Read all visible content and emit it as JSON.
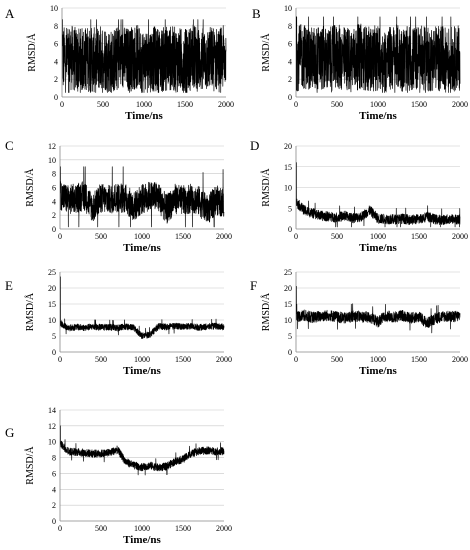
{
  "chart_data": [
    {
      "panel": "A",
      "type": "line",
      "xlabel": "Time/ns",
      "ylabel": "RMSD/Å",
      "xlim": [
        0,
        2000
      ],
      "ylim": [
        0,
        10
      ],
      "xticks": [
        "0",
        "500",
        "1000",
        "1500",
        "2000"
      ],
      "yticks": [
        "0",
        "2",
        "4",
        "6",
        "8",
        "10"
      ],
      "x": [
        0,
        100,
        200,
        300,
        400,
        500,
        600,
        700,
        800,
        900,
        1000,
        1100,
        1200,
        1300,
        1400,
        1500,
        1600,
        1700,
        1800,
        1900,
        2000
      ],
      "series": [
        {
          "values": [
            4.2,
            4.5,
            4.0,
            4.3,
            4.1,
            4.6,
            3.9,
            4.4,
            4.2,
            4.5,
            4.0,
            4.3,
            4.1,
            4.4,
            4.2,
            4.0,
            4.5,
            4.1,
            4.3,
            4.2,
            4.4
          ]
        }
      ],
      "range_min": 0.5,
      "range_max": 8.7
    },
    {
      "panel": "B",
      "type": "line",
      "xlabel": "Time/ns",
      "ylabel": "RMSD/Å",
      "xlim": [
        0,
        2000
      ],
      "ylim": [
        0,
        10
      ],
      "xticks": [
        "0",
        "500",
        "1000",
        "1500",
        "2000"
      ],
      "yticks": [
        "0",
        "2",
        "4",
        "6",
        "8",
        "10"
      ],
      "x": [
        0,
        100,
        200,
        300,
        400,
        500,
        600,
        700,
        800,
        900,
        1000,
        1100,
        1200,
        1300,
        1400,
        1500,
        1600,
        1700,
        1800,
        1900,
        2000
      ],
      "series": [
        {
          "values": [
            4.3,
            4.6,
            4.2,
            4.4,
            4.1,
            4.5,
            4.2,
            4.3,
            4.6,
            4.2,
            4.4,
            4.1,
            4.5,
            4.3,
            4.2,
            4.4,
            4.1,
            4.5,
            4.2,
            4.3,
            4.4
          ]
        }
      ],
      "range_min": 0.5,
      "range_max": 9.0
    },
    {
      "panel": "C",
      "type": "line",
      "xlabel": "Time/ns",
      "ylabel": "RMSD/Å",
      "xlim": [
        0,
        2000
      ],
      "ylim": [
        0,
        12
      ],
      "xticks": [
        "0",
        "500",
        "1000",
        "1500",
        "2000"
      ],
      "yticks": [
        "0",
        "2",
        "4",
        "6",
        "8",
        "10",
        "12"
      ],
      "x": [
        0,
        100,
        200,
        300,
        400,
        500,
        600,
        700,
        800,
        900,
        1000,
        1100,
        1200,
        1300,
        1400,
        1500,
        1600,
        1700,
        1800,
        1900,
        2000
      ],
      "series": [
        {
          "values": [
            5.0,
            4.2,
            4.5,
            4.8,
            3.0,
            4.5,
            4.2,
            4.6,
            4.4,
            3.2,
            4.3,
            4.8,
            4.6,
            2.8,
            4.4,
            4.1,
            4.5,
            4.0,
            2.7,
            4.2,
            3.8
          ]
        }
      ],
      "range_min": 0.3,
      "range_max": 9.0
    },
    {
      "panel": "D",
      "type": "line",
      "xlabel": "Time/ns",
      "ylabel": "RMSD/Å",
      "xlim": [
        0,
        2000
      ],
      "ylim": [
        0,
        20
      ],
      "xticks": [
        "0",
        "500",
        "1000",
        "1500",
        "2000"
      ],
      "yticks": [
        "0",
        "5",
        "10",
        "15",
        "20"
      ],
      "x": [
        0,
        100,
        200,
        300,
        400,
        500,
        600,
        700,
        800,
        900,
        1000,
        1100,
        1200,
        1300,
        1400,
        1500,
        1600,
        1700,
        1800,
        1900,
        2000
      ],
      "series": [
        {
          "values": [
            6.5,
            4.5,
            3.8,
            3.2,
            3.0,
            2.8,
            3.2,
            2.6,
            3.0,
            4.5,
            2.5,
            2.4,
            2.3,
            2.5,
            2.2,
            2.4,
            3.0,
            2.3,
            2.2,
            2.4,
            2.3
          ]
        }
      ],
      "range_min": 0.5,
      "range_max": 16.0
    },
    {
      "panel": "E",
      "type": "line",
      "xlabel": "Time/ns",
      "ylabel": "RMSD/Å",
      "xlim": [
        0,
        2000
      ],
      "ylim": [
        0,
        25
      ],
      "xticks": [
        "0",
        "500",
        "1000",
        "1500",
        "2000"
      ],
      "yticks": [
        "0",
        "5",
        "10",
        "15",
        "20",
        "25"
      ],
      "x": [
        0,
        100,
        200,
        300,
        400,
        500,
        600,
        700,
        800,
        900,
        1000,
        1100,
        1200,
        1300,
        1400,
        1500,
        1600,
        1700,
        1800,
        1900,
        2000
      ],
      "series": [
        {
          "values": [
            9.0,
            7.5,
            7.8,
            7.6,
            7.9,
            7.7,
            7.8,
            7.5,
            7.9,
            7.6,
            5.0,
            5.5,
            8.0,
            7.8,
            8.1,
            7.9,
            8.0,
            7.7,
            7.9,
            8.1,
            7.8
          ]
        }
      ],
      "range_min": 3.5,
      "range_max": 23.5
    },
    {
      "panel": "F",
      "type": "line",
      "xlabel": "Time/ns",
      "ylabel": "RMSD/Å",
      "xlim": [
        0,
        2000
      ],
      "ylim": [
        0,
        25
      ],
      "xticks": [
        "0",
        "500",
        "1000",
        "1500",
        "2000"
      ],
      "yticks": [
        "0",
        "5",
        "10",
        "15",
        "20",
        "25"
      ],
      "x": [
        0,
        100,
        200,
        300,
        400,
        500,
        600,
        700,
        800,
        900,
        1000,
        1100,
        1200,
        1300,
        1400,
        1500,
        1600,
        1700,
        1800,
        1900,
        2000
      ],
      "series": [
        {
          "values": [
            11.0,
            11.5,
            10.8,
            11.2,
            11.5,
            11.0,
            10.5,
            11.3,
            11.0,
            10.8,
            9.5,
            11.2,
            10.9,
            11.4,
            10.6,
            11.0,
            9.0,
            10.5,
            11.2,
            11.0,
            11.3
          ]
        }
      ],
      "range_min": 1.0,
      "range_max": 20.5
    },
    {
      "panel": "G",
      "type": "line",
      "xlabel": "Time/ns",
      "ylabel": "RMSD/Å",
      "xlim": [
        0,
        2000
      ],
      "ylim": [
        0,
        14
      ],
      "xticks": [
        "0",
        "500",
        "1000",
        "1500",
        "2000"
      ],
      "yticks": [
        "0",
        "2",
        "4",
        "6",
        "8",
        "10",
        "12",
        "14"
      ],
      "x": [
        0,
        100,
        200,
        300,
        400,
        500,
        600,
        700,
        800,
        900,
        1000,
        1100,
        1200,
        1300,
        1400,
        1500,
        1600,
        1700,
        1800,
        1900,
        2000
      ],
      "series": [
        {
          "values": [
            9.8,
            8.8,
            8.7,
            8.6,
            8.5,
            8.5,
            8.6,
            9.0,
            7.5,
            7.0,
            6.8,
            7.0,
            6.7,
            6.9,
            7.5,
            7.8,
            8.5,
            8.8,
            8.9,
            8.8,
            8.8
          ]
        }
      ],
      "range_min": 5.8,
      "range_max": 12.0
    }
  ]
}
